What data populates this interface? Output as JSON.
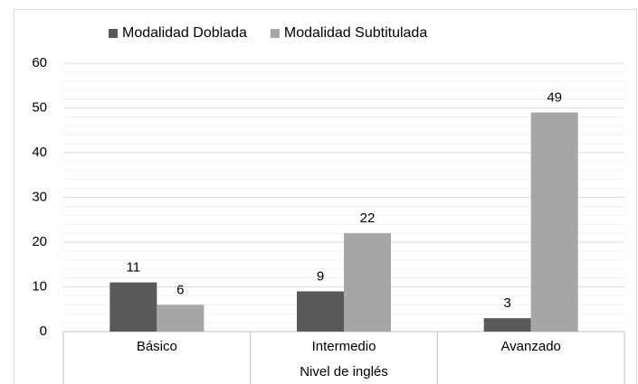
{
  "chart_data": {
    "type": "bar",
    "categories": [
      "Básico",
      "Intermedio",
      "Avanzado"
    ],
    "series": [
      {
        "name": "Modalidad Doblada",
        "color": "#595959",
        "values": [
          11,
          9,
          3
        ]
      },
      {
        "name": "Modalidad Subtitulada",
        "color": "#a6a6a6",
        "values": [
          6,
          22,
          49
        ]
      }
    ],
    "x_label": "Nivel de inglés",
    "ylim": [
      0,
      60
    ],
    "yticks": [
      0,
      10,
      20,
      30,
      40,
      50,
      60
    ],
    "yticks_minor": [
      2,
      4,
      6,
      8,
      12,
      14,
      16,
      18,
      22,
      24,
      26,
      28,
      32,
      34,
      36,
      38,
      42,
      44,
      46,
      48,
      52,
      54,
      56,
      58
    ],
    "grid": true,
    "legend": "top"
  }
}
